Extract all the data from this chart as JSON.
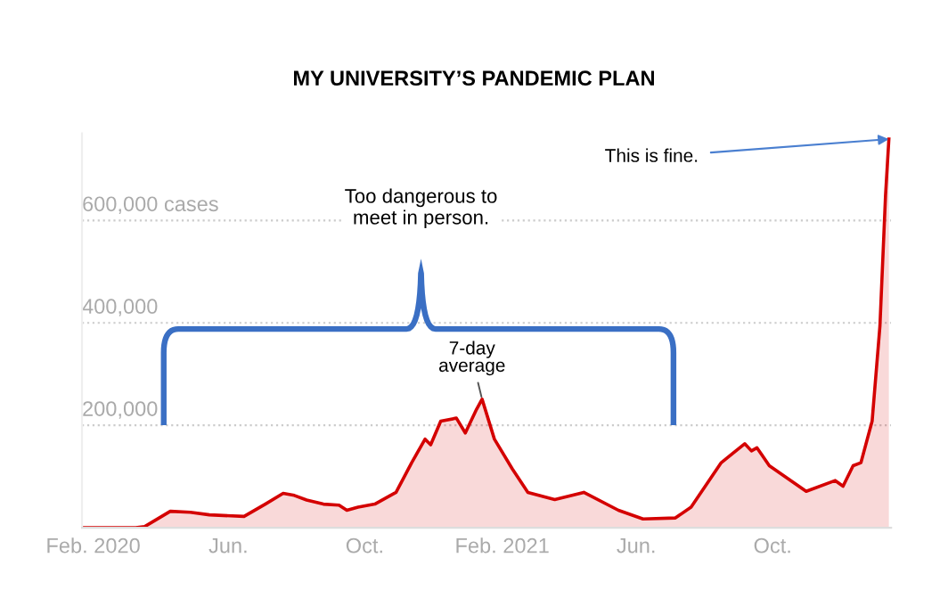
{
  "chart_data": {
    "type": "area",
    "title": "MY UNIVERSITY’S PANDEMIC PLAN",
    "x": [
      "2020-01-22",
      "2020-03-10",
      "2020-03-18",
      "2020-04-10",
      "2020-04-28",
      "2020-05-15",
      "2020-06-15",
      "2020-07-04",
      "2020-07-20",
      "2020-07-30",
      "2020-08-10",
      "2020-08-25",
      "2020-09-08",
      "2020-09-15",
      "2020-09-25",
      "2020-10-10",
      "2020-10-29",
      "2020-11-12",
      "2020-11-24",
      "2020-11-29",
      "2020-12-08",
      "2020-12-22",
      "2020-12-30",
      "2021-01-09",
      "2021-01-14",
      "2021-01-25",
      "2021-02-10",
      "2021-02-24",
      "2021-03-20",
      "2021-04-15",
      "2021-05-16",
      "2021-06-07",
      "2021-07-06",
      "2021-07-20",
      "2021-08-16",
      "2021-09-06",
      "2021-09-12",
      "2021-09-17",
      "2021-09-28",
      "2021-10-31",
      "2021-11-26",
      "2021-12-03",
      "2021-12-12",
      "2021-12-19",
      "2021-12-29",
      "2022-01-05",
      "2022-01-10",
      "2022-01-13"
    ],
    "series": [
      {
        "color": "#d40000",
        "values": [
          0,
          0,
          2000,
          32000,
          30000,
          25000,
          22000,
          46000,
          67000,
          63000,
          54000,
          46000,
          44000,
          34000,
          40000,
          46000,
          69000,
          127000,
          173000,
          162000,
          208000,
          214000,
          185000,
          231000,
          251000,
          173000,
          115000,
          69000,
          55000,
          69000,
          34000,
          17000,
          19000,
          40000,
          127000,
          164000,
          150000,
          156000,
          121000,
          71000,
          92000,
          81000,
          121000,
          127000,
          208000,
          394000,
          649000,
          759000
        ]
      }
    ],
    "xlim": [
      "2020-01-22",
      "2022-01-15"
    ],
    "xticks": [
      {
        "value": "2020-02-01",
        "label": "Feb. 2020"
      },
      {
        "value": "2020-06-01",
        "label": "Jun."
      },
      {
        "value": "2020-10-01",
        "label": "Oct."
      },
      {
        "value": "2021-02-01",
        "label": "Feb. 2021"
      },
      {
        "value": "2021-06-01",
        "label": "Jun."
      },
      {
        "value": "2021-10-01",
        "label": "Oct."
      }
    ],
    "ylim": [
      0,
      770000
    ],
    "yticks": [
      {
        "value": 200000,
        "label": "200,000"
      },
      {
        "value": 400000,
        "label": "400,000"
      },
      {
        "value": 600000,
        "label": "600,000 cases"
      }
    ],
    "grid": "y",
    "annotations": [
      {
        "text": "This is fine.",
        "x": "2022-01-13",
        "y": 759000
      },
      {
        "text": "7-day\naverage",
        "x": "2021-01-14",
        "y": 251000
      },
      "Too dangerous to\nmeet in person."
    ]
  }
}
